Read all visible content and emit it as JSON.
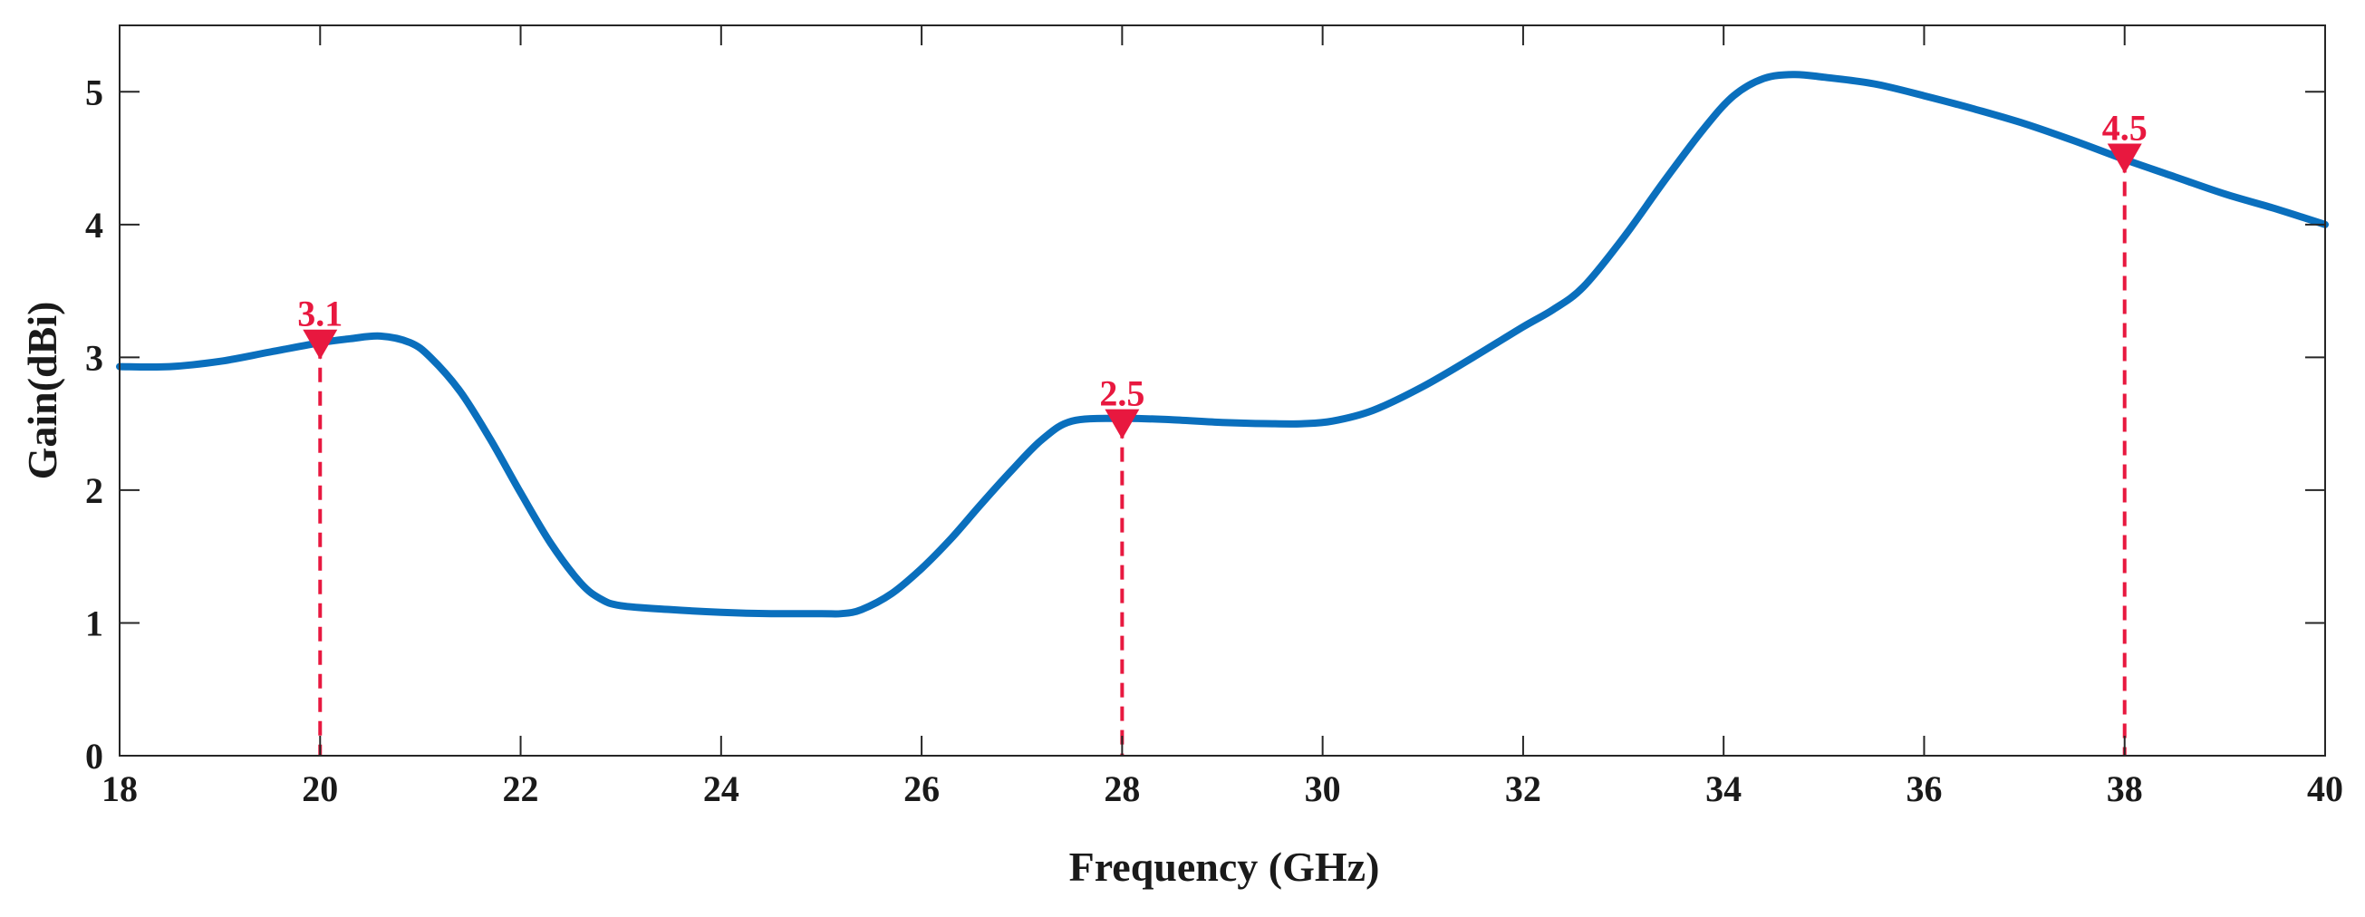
{
  "chart_data": {
    "type": "line",
    "title": "",
    "xlabel": "Frequency (GHz)",
    "ylabel": "Gain(dBi)",
    "xlim": [
      18,
      40
    ],
    "ylim": [
      0,
      5.5
    ],
    "x_ticks": [
      18,
      20,
      22,
      24,
      26,
      28,
      30,
      32,
      34,
      36,
      38,
      40
    ],
    "y_ticks": [
      0,
      1,
      2,
      3,
      4,
      5
    ],
    "x_tick_labels": [
      "18",
      "20",
      "22",
      "24",
      "26",
      "28",
      "30",
      "32",
      "34",
      "36",
      "38",
      "40"
    ],
    "y_tick_labels": [
      "0",
      "1",
      "2",
      "3",
      "4",
      "5"
    ],
    "grid": false,
    "series": [
      {
        "name": "Gain",
        "color": "#0a6fbd",
        "x": [
          18,
          18.5,
          19,
          19.5,
          20,
          20.3,
          20.6,
          20.9,
          21.1,
          21.4,
          21.7,
          22,
          22.3,
          22.6,
          22.8,
          23,
          23.5,
          24,
          24.5,
          25,
          25.2,
          25.4,
          25.7,
          26,
          26.3,
          26.6,
          26.9,
          27.2,
          27.5,
          28,
          28.5,
          29,
          29.5,
          29.8,
          30.1,
          30.5,
          31,
          31.5,
          32,
          32.3,
          32.6,
          33,
          33.4,
          33.8,
          34.1,
          34.4,
          34.7,
          35,
          35.5,
          36,
          36.5,
          37,
          37.5,
          38,
          38.5,
          39,
          39.5,
          40
        ],
        "values": [
          2.93,
          2.93,
          2.97,
          3.04,
          3.11,
          3.14,
          3.16,
          3.11,
          3.0,
          2.74,
          2.38,
          1.98,
          1.6,
          1.3,
          1.18,
          1.13,
          1.1,
          1.08,
          1.07,
          1.07,
          1.07,
          1.1,
          1.22,
          1.41,
          1.64,
          1.9,
          2.15,
          2.38,
          2.52,
          2.54,
          2.53,
          2.51,
          2.5,
          2.5,
          2.52,
          2.6,
          2.78,
          3.0,
          3.23,
          3.36,
          3.53,
          3.9,
          4.32,
          4.72,
          4.97,
          5.1,
          5.13,
          5.11,
          5.06,
          4.97,
          4.87,
          4.76,
          4.63,
          4.49,
          4.36,
          4.23,
          4.12,
          4.0
        ]
      }
    ],
    "markers": [
      {
        "x": 20,
        "value": 3.1,
        "label": "3.1",
        "color": "#e8183f"
      },
      {
        "x": 28,
        "value": 2.5,
        "label": "2.5",
        "color": "#e8183f"
      },
      {
        "x": 38,
        "value": 4.5,
        "label": "4.5",
        "color": "#e8183f"
      }
    ]
  }
}
